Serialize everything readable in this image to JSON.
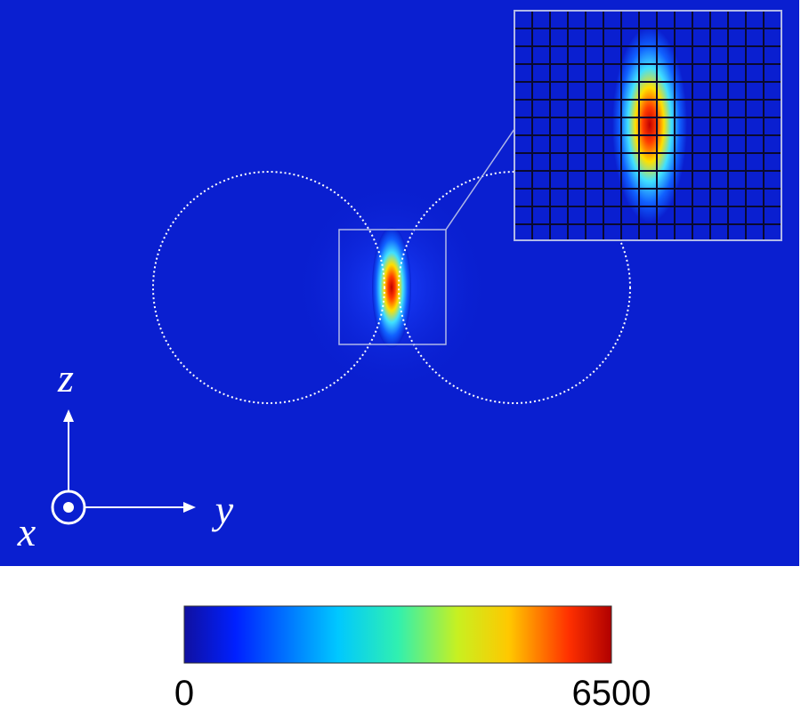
{
  "axes": {
    "x": "x",
    "y": "y",
    "z": "z"
  },
  "colorbar": {
    "min": 0,
    "max": 6500
  }
}
